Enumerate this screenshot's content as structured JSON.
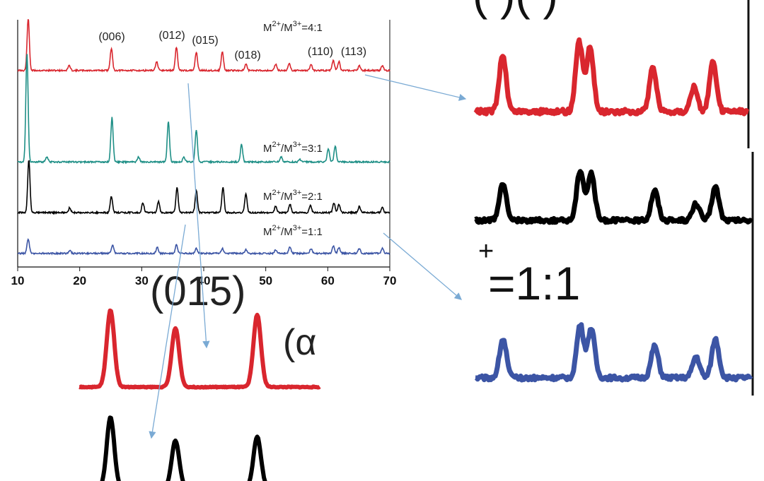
{
  "colors": {
    "red": "#d9262e",
    "teal": "#1e8f86",
    "black": "#000000",
    "blue": "#3c55a5",
    "pointer": "#7aaad4",
    "axis": "#111111"
  },
  "chart_data": [
    {
      "type": "line",
      "title": "",
      "xlabel": "",
      "ylabel": "",
      "xlim": [
        10,
        70
      ],
      "xticks": [
        "10",
        "20",
        "30",
        "40",
        "50",
        "60",
        "70"
      ],
      "ylim": [
        0,
        1
      ],
      "ytick_labels": "none",
      "grid": false,
      "legend": "inline-labels",
      "peak_labels": [
        {
          "text": "(006)",
          "x": 25.1
        },
        {
          "text": "(012)",
          "x": 35.6
        },
        {
          "text": "(015)",
          "x": 38.8
        },
        {
          "text": "(018)",
          "x": 46.7
        },
        {
          "text": "(110)",
          "x": 60.9
        },
        {
          "text": "(113)",
          "x": 62.2
        }
      ],
      "series": [
        {
          "name": "M2+/M3+=4:1",
          "label_base": "M",
          "label_sup1": "2+",
          "label_mid": "/M",
          "label_sup2": "3+",
          "label_tail": "=4:1",
          "color_key": "red",
          "baseline": 0.205,
          "peaks": [
            [
              11.7,
              0.21
            ],
            [
              18.3,
              0.02
            ],
            [
              25.1,
              0.09
            ],
            [
              32.4,
              0.035
            ],
            [
              35.6,
              0.095
            ],
            [
              38.8,
              0.075
            ],
            [
              43.0,
              0.075
            ],
            [
              46.8,
              0.025
            ],
            [
              51.6,
              0.025
            ],
            [
              53.8,
              0.028
            ],
            [
              57.3,
              0.025
            ],
            [
              60.9,
              0.04
            ],
            [
              61.8,
              0.035
            ],
            [
              65.1,
              0.02
            ],
            [
              68.8,
              0.02
            ]
          ]
        },
        {
          "name": "M2+/M3+=3:1",
          "label_base": "M",
          "label_sup1": "2+",
          "label_mid": "/M",
          "label_sup2": "3+",
          "label_tail": "=3:1",
          "color_key": "teal",
          "baseline": 0.575,
          "peaks": [
            [
              11.5,
              0.44
            ],
            [
              14.7,
              0.02
            ],
            [
              25.2,
              0.18
            ],
            [
              29.5,
              0.02
            ],
            [
              34.3,
              0.165
            ],
            [
              36.8,
              0.02
            ],
            [
              38.8,
              0.13
            ],
            [
              46.1,
              0.07
            ],
            [
              52.5,
              0.02
            ],
            [
              55.5,
              0.01
            ],
            [
              60.1,
              0.055
            ],
            [
              61.2,
              0.065
            ]
          ]
        },
        {
          "name": "M2+/M3+=2:1",
          "label_base": "M",
          "label_sup1": "2+",
          "label_mid": "/M",
          "label_sup2": "3+",
          "label_tail": "=2:1",
          "color_key": "black",
          "baseline": 0.78,
          "peaks": [
            [
              11.8,
              0.215
            ],
            [
              18.4,
              0.02
            ],
            [
              25.1,
              0.065
            ],
            [
              30.2,
              0.04
            ],
            [
              32.7,
              0.045
            ],
            [
              35.7,
              0.1
            ],
            [
              38.8,
              0.09
            ],
            [
              43.1,
              0.1
            ],
            [
              46.8,
              0.075
            ],
            [
              51.6,
              0.025
            ],
            [
              53.9,
              0.035
            ],
            [
              57.2,
              0.03
            ],
            [
              61.0,
              0.04
            ],
            [
              61.8,
              0.035
            ],
            [
              65.1,
              0.025
            ],
            [
              68.8,
              0.02
            ]
          ]
        },
        {
          "name": "M2+/M3+=1:1",
          "label_base": "M",
          "label_sup1": "2+",
          "label_mid": "/M",
          "label_sup2": "3+",
          "label_tail": "=1:1",
          "color_key": "blue",
          "baseline": 0.945,
          "peaks": [
            [
              11.7,
              0.06
            ],
            [
              18.4,
              0.012
            ],
            [
              25.3,
              0.035
            ],
            [
              32.5,
              0.025
            ],
            [
              35.6,
              0.035
            ],
            [
              38.8,
              0.02
            ],
            [
              43.0,
              0.02
            ],
            [
              46.8,
              0.015
            ],
            [
              51.6,
              0.015
            ],
            [
              53.9,
              0.025
            ],
            [
              57.3,
              0.02
            ],
            [
              60.9,
              0.03
            ],
            [
              61.8,
              0.025
            ],
            [
              65.1,
              0.02
            ],
            [
              68.8,
              0.02
            ]
          ]
        }
      ]
    }
  ],
  "zoom_insets": [
    {
      "name": "upper-right",
      "top_text": "( )( )",
      "traces": [
        {
          "color_key": "red",
          "peaks": [
            [
              0.1,
              0.7
            ],
            [
              0.38,
              0.85
            ],
            [
              0.42,
              0.8
            ],
            [
              0.65,
              0.55
            ],
            [
              0.8,
              0.3
            ],
            [
              0.87,
              0.6
            ]
          ]
        },
        {
          "color_key": "black",
          "peaks": [
            [
              0.1,
              0.55
            ],
            [
              0.38,
              0.75
            ],
            [
              0.42,
              0.7
            ],
            [
              0.65,
              0.45
            ],
            [
              0.8,
              0.25
            ],
            [
              0.87,
              0.5
            ]
          ]
        }
      ]
    },
    {
      "name": "lower-right",
      "label_sup": "+",
      "label_main": "=1:1",
      "traces": [
        {
          "color_key": "blue",
          "peaks": [
            [
              0.1,
              0.55
            ],
            [
              0.38,
              0.75
            ],
            [
              0.42,
              0.7
            ],
            [
              0.65,
              0.45
            ],
            [
              0.8,
              0.3
            ],
            [
              0.87,
              0.55
            ]
          ]
        }
      ]
    },
    {
      "name": "lower-left",
      "top_text": "(015)",
      "side_text": "(α",
      "traces": [
        {
          "color_key": "red",
          "peaks": [
            [
              0.13,
              0.85
            ],
            [
              0.4,
              0.65
            ],
            [
              0.74,
              0.8
            ]
          ]
        },
        {
          "color_key": "black",
          "peaks": [
            [
              0.13,
              0.9
            ],
            [
              0.4,
              0.6
            ],
            [
              0.74,
              0.65
            ]
          ]
        }
      ]
    }
  ]
}
